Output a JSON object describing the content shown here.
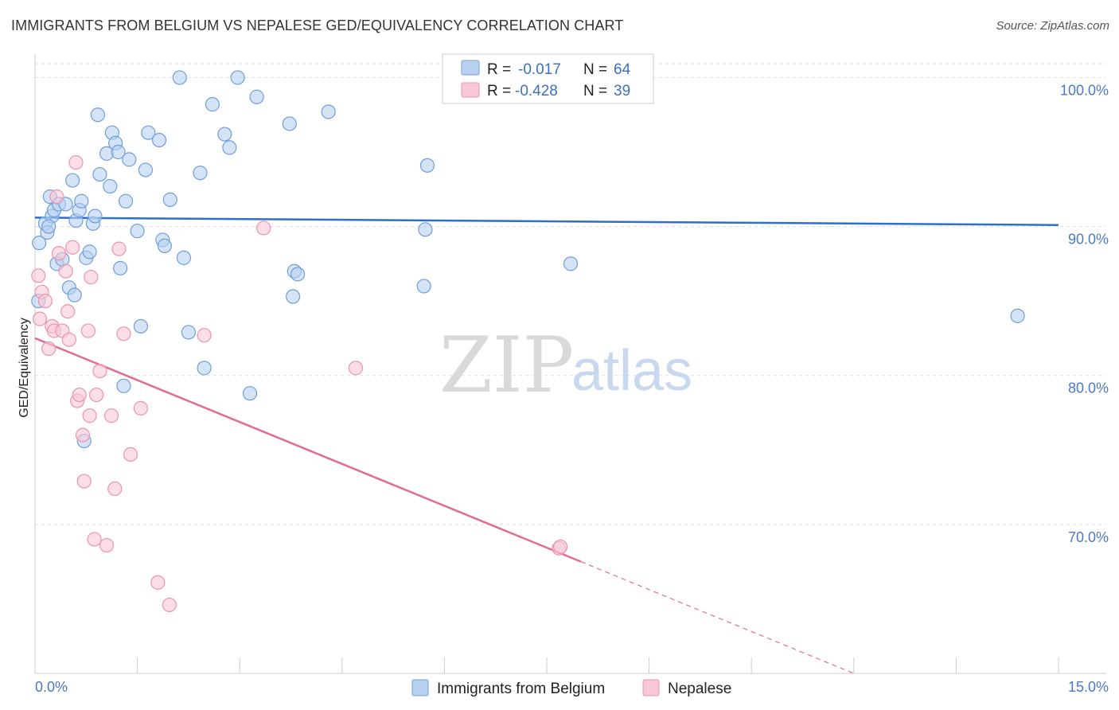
{
  "title": "IMMIGRANTS FROM BELGIUM VS NEPALESE GED/EQUIVALENCY CORRELATION CHART",
  "source": "Source: ZipAtlas.com",
  "watermark": {
    "zip": "ZIP",
    "atlas": "atlas"
  },
  "colors": {
    "belgium_fill": "#b8d1f0",
    "belgium_stroke": "#6f9fd8",
    "belgium_line": "#2e6fc9",
    "nepal_fill": "#f8c8d6",
    "nepal_stroke": "#ea94b0",
    "nepal_line": "#e06c95",
    "grid": "#dddddd",
    "tick_label": "#4a7ac7"
  },
  "legend": {
    "rows": [
      {
        "r_label": "R =",
        "r_value": "-0.017",
        "n_label": "N =",
        "n_value": "64"
      },
      {
        "r_label": "R =",
        "r_value": "-0.428",
        "n_label": "N =",
        "n_value": "39"
      }
    ]
  },
  "chart_data": {
    "type": "scatter",
    "title": "IMMIGRANTS FROM BELGIUM VS NEPALESE GED/EQUIVALENCY CORRELATION CHART",
    "xlabel": "",
    "ylabel": "GED/Equivalency",
    "xlim": [
      0,
      15
    ],
    "ylim": [
      60,
      102
    ],
    "x_tick_labels": [
      "0.0%",
      "15.0%"
    ],
    "y_ticks": [
      70,
      80,
      90,
      100
    ],
    "y_tick_labels": [
      "70.0%",
      "80.0%",
      "90.0%",
      "100.0%"
    ],
    "grid": true,
    "legend_position": "top-center",
    "series": [
      {
        "name": "Immigrants from Belgium",
        "trend": {
          "x": [
            0,
            15
          ],
          "y": [
            90.6,
            90.1
          ],
          "solid_to": 15
        },
        "points": [
          [
            0.06,
            88.9
          ],
          [
            0.15,
            90.2
          ],
          [
            0.18,
            89.6
          ],
          [
            0.22,
            92.0
          ],
          [
            0.25,
            90.7
          ],
          [
            0.28,
            91.1
          ],
          [
            0.32,
            87.5
          ],
          [
            0.35,
            91.5
          ],
          [
            0.4,
            87.8
          ],
          [
            0.45,
            91.5
          ],
          [
            0.5,
            85.9
          ],
          [
            0.55,
            93.1
          ],
          [
            0.58,
            85.4
          ],
          [
            0.6,
            90.4
          ],
          [
            0.65,
            91.1
          ],
          [
            0.68,
            91.7
          ],
          [
            0.72,
            75.6
          ],
          [
            0.75,
            87.9
          ],
          [
            0.8,
            88.3
          ],
          [
            0.85,
            90.2
          ],
          [
            0.88,
            90.7
          ],
          [
            0.92,
            97.5
          ],
          [
            0.95,
            93.5
          ],
          [
            1.05,
            94.9
          ],
          [
            1.1,
            92.7
          ],
          [
            1.13,
            96.3
          ],
          [
            1.18,
            95.6
          ],
          [
            1.22,
            95.0
          ],
          [
            1.25,
            87.2
          ],
          [
            1.3,
            79.3
          ],
          [
            1.33,
            91.7
          ],
          [
            1.38,
            94.5
          ],
          [
            1.5,
            89.7
          ],
          [
            1.55,
            83.3
          ],
          [
            1.62,
            93.8
          ],
          [
            1.66,
            96.3
          ],
          [
            1.82,
            95.8
          ],
          [
            1.87,
            89.1
          ],
          [
            1.9,
            88.7
          ],
          [
            1.98,
            91.8
          ],
          [
            2.12,
            100.0
          ],
          [
            2.18,
            87.9
          ],
          [
            2.25,
            82.9
          ],
          [
            2.42,
            93.6
          ],
          [
            2.48,
            80.5
          ],
          [
            2.6,
            98.2
          ],
          [
            2.78,
            96.2
          ],
          [
            2.85,
            95.3
          ],
          [
            2.97,
            100.0
          ],
          [
            3.15,
            78.8
          ],
          [
            3.25,
            98.7
          ],
          [
            3.73,
            96.9
          ],
          [
            3.78,
            85.3
          ],
          [
            3.8,
            87.0
          ],
          [
            3.85,
            86.8
          ],
          [
            4.3,
            97.7
          ],
          [
            5.7,
            86.0
          ],
          [
            5.72,
            89.8
          ],
          [
            5.75,
            94.1
          ],
          [
            6.1,
            100.0
          ],
          [
            7.85,
            87.5
          ],
          [
            14.4,
            84.0
          ],
          [
            0.05,
            85.0
          ],
          [
            0.2,
            90.0
          ]
        ]
      },
      {
        "name": "Nepalese",
        "trend": {
          "x": [
            0,
            12.0
          ],
          "y": [
            82.5,
            60.0
          ],
          "solid_to": 8.0
        },
        "points": [
          [
            0.05,
            86.7
          ],
          [
            0.07,
            83.8
          ],
          [
            0.1,
            85.6
          ],
          [
            0.15,
            85.0
          ],
          [
            0.2,
            81.8
          ],
          [
            0.25,
            83.3
          ],
          [
            0.28,
            83.0
          ],
          [
            0.32,
            92.0
          ],
          [
            0.35,
            88.2
          ],
          [
            0.4,
            83.0
          ],
          [
            0.45,
            87.0
          ],
          [
            0.48,
            84.3
          ],
          [
            0.5,
            82.4
          ],
          [
            0.55,
            88.6
          ],
          [
            0.6,
            94.3
          ],
          [
            0.62,
            78.3
          ],
          [
            0.65,
            78.7
          ],
          [
            0.7,
            76.0
          ],
          [
            0.72,
            72.9
          ],
          [
            0.78,
            83.0
          ],
          [
            0.8,
            77.3
          ],
          [
            0.82,
            86.6
          ],
          [
            0.87,
            69.0
          ],
          [
            0.9,
            78.7
          ],
          [
            0.95,
            80.3
          ],
          [
            1.05,
            68.6
          ],
          [
            1.12,
            77.3
          ],
          [
            1.17,
            72.4
          ],
          [
            1.23,
            88.5
          ],
          [
            1.3,
            82.8
          ],
          [
            1.4,
            74.7
          ],
          [
            1.55,
            77.8
          ],
          [
            1.8,
            66.1
          ],
          [
            1.97,
            64.6
          ],
          [
            2.48,
            82.7
          ],
          [
            3.35,
            89.9
          ],
          [
            4.7,
            80.5
          ],
          [
            7.68,
            68.4
          ],
          [
            7.7,
            68.5
          ]
        ]
      }
    ]
  },
  "bottom_legend": {
    "items": [
      {
        "label": "Immigrants from Belgium"
      },
      {
        "label": "Nepalese"
      }
    ]
  }
}
